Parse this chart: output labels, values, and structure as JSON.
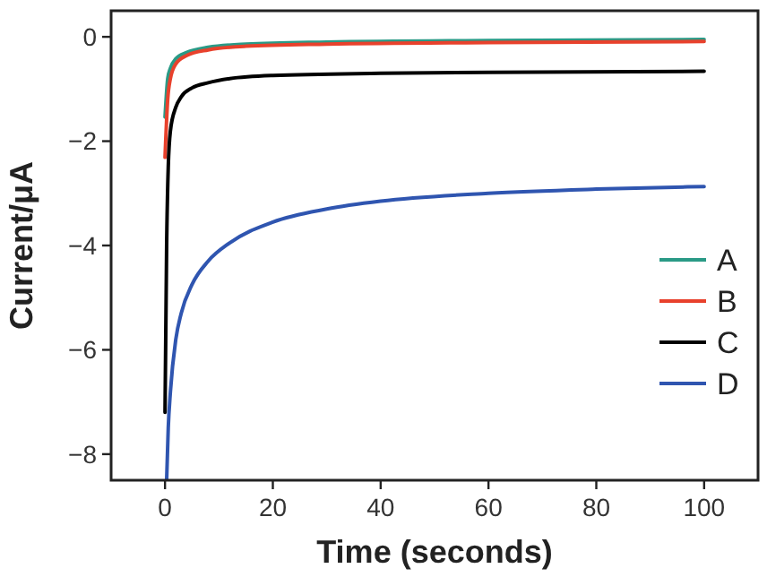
{
  "chart_data": {
    "type": "line",
    "xlabel": "Time (seconds)",
    "ylabel": "Current/μA",
    "xlim": [
      -10,
      110
    ],
    "ylim": [
      -8.5,
      0.5
    ],
    "xticks": [
      0,
      20,
      40,
      60,
      80,
      100
    ],
    "yticks": [
      {
        "value": 0,
        "label": "0"
      },
      {
        "value": -2,
        "label": "−2"
      },
      {
        "value": -4,
        "label": "−4"
      },
      {
        "value": -6,
        "label": "−6"
      },
      {
        "value": -8,
        "label": "−8"
      }
    ],
    "grid": false,
    "legend": "right",
    "marker": "none",
    "line_style": "solid",
    "series": [
      {
        "name": "A",
        "color": "#2a9a86",
        "x": [
          0,
          0.5,
          1,
          2,
          4,
          8,
          15,
          30,
          60,
          100
        ],
        "values": [
          -1.54,
          -0.8,
          -0.6,
          -0.42,
          -0.3,
          -0.2,
          -0.14,
          -0.1,
          -0.07,
          -0.05
        ]
      },
      {
        "name": "B",
        "color": "#e8412c",
        "x": [
          0,
          0.5,
          1,
          2,
          4,
          8,
          15,
          30,
          60,
          100
        ],
        "values": [
          -2.31,
          -1.2,
          -0.8,
          -0.52,
          -0.36,
          -0.25,
          -0.18,
          -0.14,
          -0.11,
          -0.09
        ]
      },
      {
        "name": "C",
        "color": "#000000",
        "x": [
          0,
          0.3,
          0.6,
          1,
          2,
          3,
          5,
          8,
          12,
          20,
          40,
          60,
          100
        ],
        "values": [
          -7.2,
          -4,
          -2.5,
          -1.8,
          -1.35,
          -1.15,
          -0.98,
          -0.88,
          -0.8,
          -0.74,
          -0.7,
          -0.68,
          -0.66
        ]
      },
      {
        "name": "D",
        "color": "#2f55b0",
        "x": [
          0.3,
          0.6,
          1,
          2,
          3,
          5,
          8,
          12,
          20,
          30,
          40,
          60,
          80,
          100
        ],
        "values": [
          -8.5,
          -7.5,
          -6.8,
          -5.8,
          -5.3,
          -4.75,
          -4.3,
          -3.95,
          -3.55,
          -3.3,
          -3.15,
          -3.0,
          -2.92,
          -2.87
        ]
      }
    ]
  }
}
